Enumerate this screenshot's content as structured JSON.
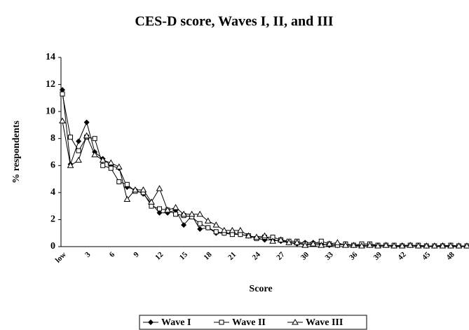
{
  "chart_data": {
    "type": "line",
    "title": "CES-D score, Waves I, II, and III",
    "x_label": "Score",
    "y_label": "% respondents",
    "categories": [
      "low",
      null,
      null,
      "3",
      null,
      null,
      "6",
      null,
      null,
      "9",
      null,
      null,
      "12",
      null,
      null,
      "15",
      null,
      null,
      "18",
      null,
      null,
      "21",
      null,
      null,
      "24",
      null,
      null,
      "27",
      null,
      null,
      "30",
      null,
      null,
      "33",
      null,
      null,
      "36",
      null,
      null,
      "39",
      null,
      null,
      "42",
      null,
      null,
      "45",
      null,
      null,
      "48",
      null,
      null
    ],
    "series": [
      {
        "name": "Wave I",
        "color": "#000000",
        "marker": "diamond",
        "values": [
          11.6,
          6.1,
          7.8,
          9.2,
          7.0,
          6.5,
          6.0,
          5.8,
          4.4,
          4.2,
          3.9,
          3.2,
          2.5,
          2.5,
          2.7,
          1.6,
          2.3,
          1.3,
          1.4,
          1.0,
          1.0,
          1.0,
          0.9,
          0.8,
          0.6,
          0.5,
          0.5,
          0.4,
          0.3,
          0.2,
          0.3,
          0.3,
          0.2,
          0.1,
          0.1,
          0.2,
          0.1,
          0.1,
          0.1,
          0.1,
          0.1,
          0.05,
          0.1,
          0.1,
          0.05,
          0.05,
          0.05,
          0.1,
          0.05,
          0.05,
          0.05
        ]
      },
      {
        "name": "Wave II",
        "color": "#000000",
        "marker": "square",
        "values": [
          11.3,
          8.1,
          7.1,
          8.1,
          8.0,
          6.0,
          5.8,
          4.8,
          4.6,
          4.1,
          4.0,
          3.0,
          2.8,
          2.7,
          2.4,
          2.3,
          2.2,
          1.7,
          1.4,
          1.1,
          1.0,
          0.9,
          0.9,
          0.8,
          0.6,
          0.7,
          0.7,
          0.5,
          0.4,
          0.4,
          0.2,
          0.2,
          0.4,
          0.2,
          0.1,
          0.2,
          0.1,
          0.2,
          0.2,
          0.1,
          0.1,
          0.1,
          0.05,
          0.1,
          0.1,
          0.05,
          0.05,
          0.05,
          0.1,
          0.05,
          0.05
        ]
      },
      {
        "name": "Wave III",
        "color": "#000000",
        "marker": "triangle",
        "values": [
          9.3,
          6.0,
          6.4,
          8.2,
          6.8,
          6.4,
          6.2,
          5.9,
          3.5,
          4.2,
          4.2,
          3.3,
          4.3,
          2.7,
          2.9,
          2.4,
          2.4,
          2.4,
          1.9,
          1.6,
          1.2,
          1.2,
          1.2,
          0.8,
          0.7,
          0.8,
          0.4,
          0.5,
          0.3,
          0.3,
          0.1,
          0.2,
          0.1,
          0.2,
          0.3,
          0.1,
          0.1,
          0.05,
          0.1,
          0.05,
          0.1,
          0.05,
          0.05,
          0.1,
          0.05,
          0.05,
          0.05,
          0.05,
          0.05,
          0.05,
          0.05
        ]
      }
    ],
    "ylim": [
      0,
      14
    ],
    "yticks": [
      0,
      2,
      4,
      6,
      8,
      10,
      12,
      14
    ],
    "grid": false,
    "legend": "bottom"
  }
}
